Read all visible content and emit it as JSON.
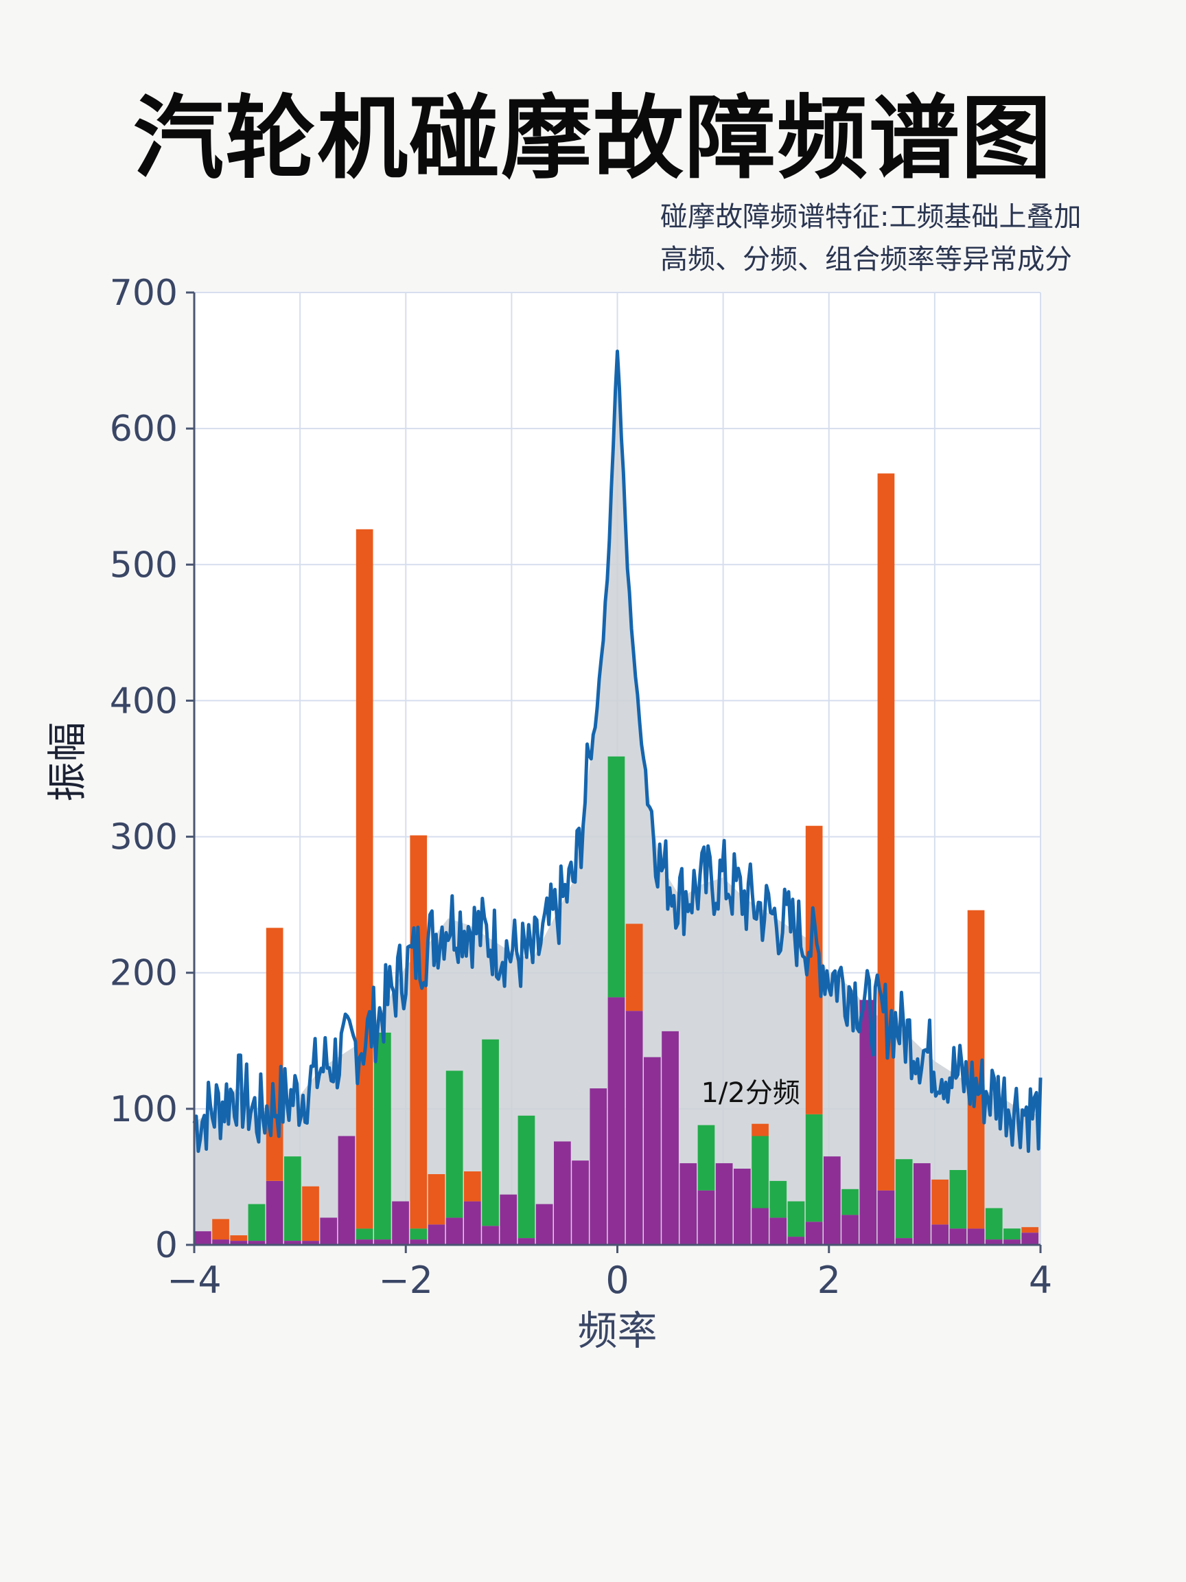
{
  "chart_data": {
    "type": "bar",
    "title": "汽轮机碰摩故障频谱图",
    "annotation_lines": [
      "碰摩故障频谱特征:工频基础上叠加",
      "高频、分频、组合频率等异常成分"
    ],
    "xlabel": "频率",
    "ylabel": "振幅",
    "xlim": [
      -4,
      4
    ],
    "ylim": [
      0,
      700
    ],
    "x_ticks": [
      -4,
      -2,
      0,
      2,
      4
    ],
    "x_tick_labels": [
      "−4",
      "−2",
      "0",
      "2",
      "4"
    ],
    "y_ticks": [
      0,
      100,
      200,
      300,
      400,
      500,
      600,
      700
    ],
    "y_tick_labels": [
      "0",
      "100",
      "200",
      "300",
      "400",
      "500",
      "600",
      "700"
    ],
    "grid": true,
    "data_label": {
      "text": "1/2分频",
      "x": 1.0,
      "y": 110
    },
    "colors": {
      "line": "#1565ad",
      "fill": "#cdd1d6",
      "purple": "#8e2f96",
      "green": "#22ab4a",
      "orange": "#ea5a1c",
      "grid": "#d6deee",
      "axis_text": "#3a4665"
    },
    "line_series": {
      "x": [
        -4.0,
        -3.8,
        -3.6,
        -3.4,
        -3.2,
        -3.0,
        -2.8,
        -2.6,
        -2.4,
        -2.2,
        -2.0,
        -1.8,
        -1.6,
        -1.4,
        -1.2,
        -1.0,
        -0.8,
        -0.6,
        -0.4,
        -0.3,
        -0.2,
        -0.1,
        0.0,
        0.1,
        0.2,
        0.3,
        0.4,
        0.6,
        0.8,
        1.0,
        1.2,
        1.4,
        1.6,
        1.8,
        2.0,
        2.2,
        2.4,
        2.6,
        2.8,
        3.0,
        3.2,
        3.4,
        3.6,
        3.8,
        4.0
      ],
      "y": [
        90,
        100,
        115,
        95,
        105,
        110,
        130,
        140,
        150,
        175,
        205,
        220,
        240,
        235,
        225,
        215,
        210,
        240,
        270,
        330,
        390,
        480,
        660,
        490,
        390,
        330,
        280,
        255,
        265,
        270,
        255,
        245,
        235,
        225,
        200,
        190,
        170,
        165,
        150,
        135,
        125,
        115,
        110,
        100,
        95
      ]
    },
    "bars": {
      "width": 0.16,
      "x": [
        -3.92,
        -3.75,
        -3.58,
        -3.41,
        -3.24,
        -3.07,
        -2.9,
        -2.73,
        -2.56,
        -2.39,
        -2.22,
        -2.05,
        -1.88,
        -1.71,
        -1.54,
        -1.37,
        -1.2,
        -1.03,
        -0.86,
        -0.69,
        -0.52,
        -0.35,
        -0.18,
        -0.01,
        0.16,
        0.33,
        0.5,
        0.67,
        0.84,
        1.01,
        1.18,
        1.35,
        1.52,
        1.69,
        1.86,
        2.03,
        2.2,
        2.37,
        2.54,
        2.71,
        2.88,
        3.05,
        3.22,
        3.39,
        3.56,
        3.73,
        3.9
      ],
      "series": [
        {
          "name": "purple",
          "values": [
            10,
            4,
            3,
            3,
            47,
            3,
            3,
            20,
            80,
            4,
            4,
            32,
            4,
            15,
            20,
            32,
            14,
            37,
            5,
            30,
            76,
            62,
            115,
            182,
            172,
            138,
            157,
            60,
            40,
            60,
            56,
            27,
            20,
            6,
            17,
            65,
            22,
            180,
            40,
            5,
            60,
            15,
            12,
            12,
            4,
            4,
            9
          ]
        },
        {
          "name": "green",
          "values": [
            0,
            0,
            0,
            27,
            0,
            62,
            0,
            0,
            0,
            8,
            152,
            0,
            8,
            0,
            108,
            0,
            137,
            0,
            90,
            0,
            0,
            0,
            0,
            177,
            0,
            0,
            0,
            0,
            48,
            0,
            0,
            53,
            27,
            26,
            79,
            0,
            19,
            0,
            0,
            58,
            0,
            0,
            43,
            0,
            23,
            8,
            0
          ]
        },
        {
          "name": "orange",
          "values": [
            0,
            15,
            4,
            0,
            186,
            0,
            40,
            0,
            0,
            514,
            0,
            0,
            289,
            37,
            0,
            22,
            0,
            0,
            0,
            0,
            0,
            0,
            0,
            0,
            64,
            0,
            0,
            0,
            0,
            0,
            0,
            9,
            0,
            0,
            212,
            0,
            0,
            0,
            527,
            0,
            0,
            33,
            0,
            234,
            0,
            0,
            4
          ]
        }
      ]
    }
  }
}
